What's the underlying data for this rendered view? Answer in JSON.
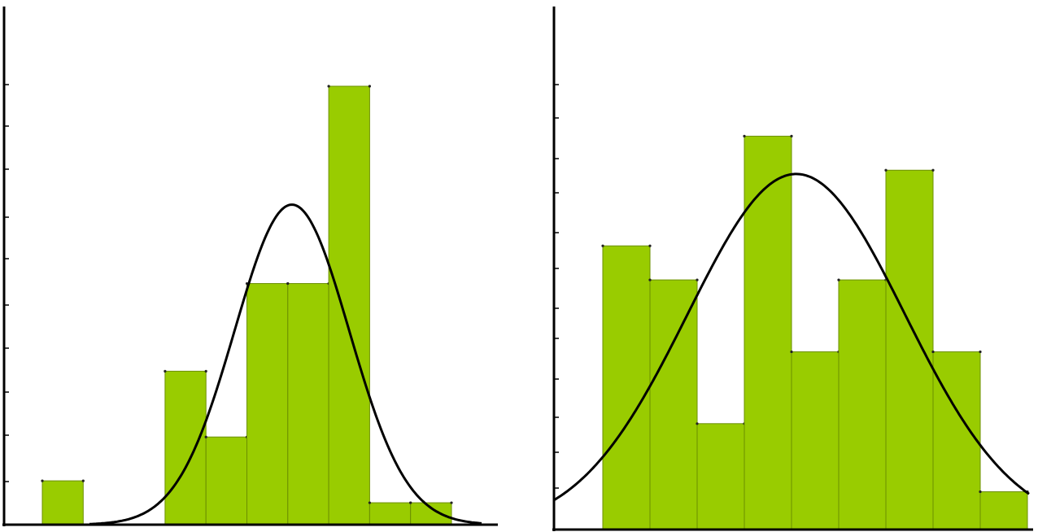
{
  "colors": {
    "bar": "#99cc00",
    "bar_edge": "#6b8f00",
    "axis": "#000000",
    "curve": "#000000"
  },
  "chart_data": [
    {
      "type": "bar",
      "subtype": "histogram-with-density-curve",
      "title": "",
      "xlabel": "",
      "ylabel": "",
      "grid": false,
      "ylim": [
        0,
        11
      ],
      "bins": [
        {
          "x0": 0.5,
          "x1": 1.5,
          "count": 1
        },
        {
          "x0": 1.5,
          "x1": 2.5,
          "count": 0
        },
        {
          "x0": 2.5,
          "x1": 3.5,
          "count": 0
        },
        {
          "x0": 3.5,
          "x1": 4.5,
          "count": 3.5
        },
        {
          "x0": 4.5,
          "x1": 5.5,
          "count": 2
        },
        {
          "x0": 5.5,
          "x1": 6.5,
          "count": 5.5
        },
        {
          "x0": 6.5,
          "x1": 7.5,
          "count": 5.5
        },
        {
          "x0": 7.5,
          "x1": 8.5,
          "count": 10
        },
        {
          "x0": 8.5,
          "x1": 9.5,
          "count": 0.5
        },
        {
          "x0": 9.5,
          "x1": 10.5,
          "count": 0.5
        }
      ],
      "density_curve": {
        "mean": 6.6,
        "sd": 1.4,
        "peak": 7.3
      }
    },
    {
      "type": "bar",
      "subtype": "histogram-with-density-curve",
      "title": "",
      "xlabel": "",
      "ylabel": "",
      "grid": false,
      "ylim": [
        0,
        13
      ],
      "bins": [
        {
          "x0": 0,
          "x1": 1,
          "count": 7.5
        },
        {
          "x0": 1,
          "x1": 2,
          "count": 6.6
        },
        {
          "x0": 2,
          "x1": 3,
          "count": 2.8
        },
        {
          "x0": 3,
          "x1": 4,
          "count": 10.4
        },
        {
          "x0": 4,
          "x1": 5,
          "count": 4.7
        },
        {
          "x0": 5,
          "x1": 6,
          "count": 6.6
        },
        {
          "x0": 6,
          "x1": 7,
          "count": 9.5
        },
        {
          "x0": 7,
          "x1": 8,
          "count": 4.7
        },
        {
          "x0": 8,
          "x1": 9,
          "count": 1
        }
      ],
      "density_curve": {
        "mean": 4.1,
        "sd": 2.3,
        "peak": 9.4
      }
    }
  ]
}
